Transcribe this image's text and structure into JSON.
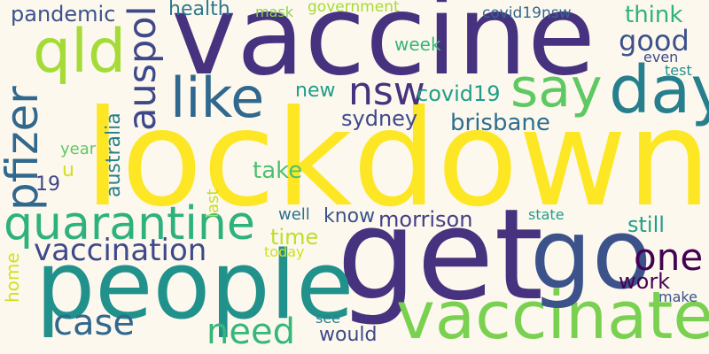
{
  "words": [
    {
      "id": "lockdown",
      "text": "lockdown",
      "color": "#fde725"
    },
    {
      "id": "vaccine",
      "text": "vaccine",
      "color": "#46327e"
    },
    {
      "id": "get",
      "text": "get",
      "color": "#46327e"
    },
    {
      "id": "people",
      "text": "people",
      "color": "#21918c"
    },
    {
      "id": "vaccinate",
      "text": "vaccinate",
      "color": "#7ad151"
    },
    {
      "id": "go",
      "text": "go",
      "color": "#3b528b"
    },
    {
      "id": "day",
      "text": "day",
      "color": "#277f8e"
    },
    {
      "id": "say",
      "text": "say",
      "color": "#5ec962"
    },
    {
      "id": "like",
      "text": "like",
      "color": "#31688e"
    },
    {
      "id": "qld",
      "text": "qld",
      "color": "#a5db36"
    },
    {
      "id": "auspol",
      "text": "auspol",
      "color": "#3e4989"
    },
    {
      "id": "nsw",
      "text": "nsw",
      "color": "#46327e"
    },
    {
      "id": "quarantine",
      "text": "quarantine",
      "color": "#2db27d"
    },
    {
      "id": "pfizer",
      "text": "pfizer",
      "color": "#31688e"
    },
    {
      "id": "vaccination",
      "text": "vaccination",
      "color": "#3e4989"
    },
    {
      "id": "case",
      "text": "case",
      "color": "#31688e"
    },
    {
      "id": "need",
      "text": "need",
      "color": "#35b779"
    },
    {
      "id": "one",
      "text": "one",
      "color": "#440154"
    },
    {
      "id": "good",
      "text": "good",
      "color": "#3b528b"
    },
    {
      "id": "pandemic",
      "text": "pandemic",
      "color": "#3b528b"
    },
    {
      "id": "health",
      "text": "health",
      "color": "#2a788e"
    },
    {
      "id": "think",
      "text": "think",
      "color": "#2db27d"
    },
    {
      "id": "covid19",
      "text": "covid19",
      "color": "#1f9e89"
    },
    {
      "id": "brisbane",
      "text": "brisbane",
      "color": "#2e6e8e"
    },
    {
      "id": "sydney",
      "text": "sydney",
      "color": "#3e4989"
    },
    {
      "id": "morrison",
      "text": "morrison",
      "color": "#424086"
    },
    {
      "id": "australia",
      "text": "australia",
      "color": "#27808e"
    },
    {
      "id": "take",
      "text": "take",
      "color": "#4ac16d"
    },
    {
      "id": "time",
      "text": "time",
      "color": "#bddf26"
    },
    {
      "id": "still",
      "text": "still",
      "color": "#1f9e89"
    },
    {
      "id": "work",
      "text": "work",
      "color": "#440154"
    },
    {
      "id": "know",
      "text": "know",
      "color": "#3b528b"
    },
    {
      "id": "would",
      "text": "would",
      "color": "#3e4989"
    },
    {
      "id": "week",
      "text": "week",
      "color": "#35b779"
    },
    {
      "id": "new",
      "text": "new",
      "color": "#1f9e89"
    },
    {
      "id": "covid19nsw",
      "text": "covid19nsw",
      "color": "#31688e"
    },
    {
      "id": "government",
      "text": "government",
      "color": "#a5db36"
    },
    {
      "id": "mask",
      "text": "mask",
      "color": "#86d549"
    },
    {
      "id": "year",
      "text": "year",
      "color": "#5ec962"
    },
    {
      "id": "u",
      "text": "u",
      "color": "#d0e11c"
    },
    {
      "id": "19",
      "text": "19",
      "color": "#414487"
    },
    {
      "id": "last",
      "text": "last",
      "color": "#c2df23"
    },
    {
      "id": "home",
      "text": "home",
      "color": "#d0e11c"
    },
    {
      "id": "well",
      "text": "well",
      "color": "#2d708e"
    },
    {
      "id": "today",
      "text": "today",
      "color": "#d0e11c"
    },
    {
      "id": "state",
      "text": "state",
      "color": "#1f9e89"
    },
    {
      "id": "make",
      "text": "make",
      "color": "#3b528b"
    },
    {
      "id": "see",
      "text": "see",
      "color": "#26828e"
    },
    {
      "id": "even",
      "text": "even",
      "color": "#3e4989"
    },
    {
      "id": "test",
      "text": "test",
      "color": "#21918c"
    }
  ]
}
